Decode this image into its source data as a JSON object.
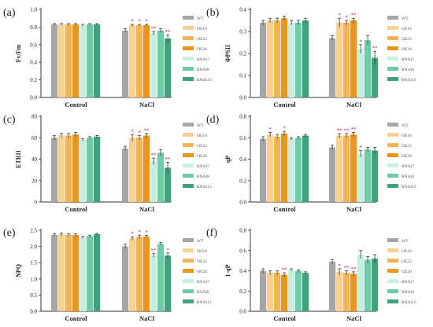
{
  "legend": [
    "WT",
    "OE18",
    "OE22",
    "OE28",
    "RNAi7",
    "RNAi8",
    "RNAi13"
  ],
  "colors": {
    "WT": "#a6a6a6",
    "OE18": "#f9d08f",
    "OE22": "#f6b354",
    "OE28": "#e9951a",
    "RNAi7": "#c4f0e3",
    "RNAi8": "#6dcca8",
    "RNAi13": "#3ea27a",
    "significance": "#c01060"
  },
  "chart_data": [
    {
      "type": "bar",
      "panel": "(a)",
      "ylabel": "Fv/Fm",
      "categories": [
        "Control",
        "NaCl"
      ],
      "ylim": [
        0,
        1.0
      ],
      "yticks": [
        0.0,
        0.2,
        0.4,
        0.6,
        0.8,
        1.0
      ],
      "tick_labels": [
        "0.0",
        "0.2",
        "0.4",
        "0.6",
        "0.8",
        "1.0"
      ],
      "series": [
        {
          "name": "WT",
          "values": [
            0.83,
            0.76
          ],
          "errors": [
            0.01,
            0.02
          ],
          "marks": [
            "",
            ""
          ]
        },
        {
          "name": "OE18",
          "values": [
            0.83,
            0.82
          ],
          "errors": [
            0.01,
            0.01
          ],
          "marks": [
            "",
            "*"
          ]
        },
        {
          "name": "OE22",
          "values": [
            0.83,
            0.82
          ],
          "errors": [
            0.01,
            0.01
          ],
          "marks": [
            "",
            "*"
          ]
        },
        {
          "name": "OE28",
          "values": [
            0.83,
            0.82
          ],
          "errors": [
            0.01,
            0.01
          ],
          "marks": [
            "",
            "*"
          ]
        },
        {
          "name": "RNAi7",
          "values": [
            0.82,
            0.73
          ],
          "errors": [
            0.01,
            0.02
          ],
          "marks": [
            "",
            "**"
          ]
        },
        {
          "name": "RNAi8",
          "values": [
            0.83,
            0.76
          ],
          "errors": [
            0.01,
            0.02
          ],
          "marks": [
            "",
            ""
          ]
        },
        {
          "name": "RNAi13",
          "values": [
            0.83,
            0.67
          ],
          "errors": [
            0.01,
            0.04
          ],
          "marks": [
            "",
            "**"
          ]
        }
      ]
    },
    {
      "type": "bar",
      "panel": "(b)",
      "ylabel": "ΦPSII",
      "categories": [
        "Control",
        "NaCl"
      ],
      "ylim": [
        0,
        0.4
      ],
      "yticks": [
        0.0,
        0.1,
        0.2,
        0.3,
        0.4
      ],
      "tick_labels": [
        "0.0",
        "0.1",
        "0.2",
        "0.3",
        "0.4"
      ],
      "series": [
        {
          "name": "WT",
          "values": [
            0.34,
            0.27
          ],
          "errors": [
            0.01,
            0.01
          ],
          "marks": [
            "",
            ""
          ]
        },
        {
          "name": "OE18",
          "values": [
            0.35,
            0.34
          ],
          "errors": [
            0.01,
            0.02
          ],
          "marks": [
            "",
            "*"
          ]
        },
        {
          "name": "OE22",
          "values": [
            0.35,
            0.34
          ],
          "errors": [
            0.01,
            0.01
          ],
          "marks": [
            "",
            "*"
          ]
        },
        {
          "name": "OE28",
          "values": [
            0.36,
            0.35
          ],
          "errors": [
            0.01,
            0.01
          ],
          "marks": [
            "",
            "**"
          ]
        },
        {
          "name": "RNAi7",
          "values": [
            0.34,
            0.22
          ],
          "errors": [
            0.01,
            0.02
          ],
          "marks": [
            "",
            "*"
          ]
        },
        {
          "name": "RNAi8",
          "values": [
            0.34,
            0.26
          ],
          "errors": [
            0.01,
            0.02
          ],
          "marks": [
            "",
            ""
          ]
        },
        {
          "name": "RNAi13",
          "values": [
            0.35,
            0.18
          ],
          "errors": [
            0.01,
            0.03
          ],
          "marks": [
            "",
            "**"
          ]
        }
      ]
    },
    {
      "type": "bar",
      "panel": "(c)",
      "ylabel": "ETRII",
      "categories": [
        "Control",
        "NaCl"
      ],
      "ylim": [
        0,
        80
      ],
      "yticks": [
        0,
        20,
        40,
        60,
        80
      ],
      "tick_labels": [
        "0",
        "20",
        "40",
        "60",
        "80"
      ],
      "series": [
        {
          "name": "WT",
          "values": [
            60,
            50
          ],
          "errors": [
            2,
            2
          ],
          "marks": [
            "",
            ""
          ]
        },
        {
          "name": "OE18",
          "values": [
            62,
            60
          ],
          "errors": [
            2,
            3
          ],
          "marks": [
            "",
            "*"
          ]
        },
        {
          "name": "OE22",
          "values": [
            62,
            60
          ],
          "errors": [
            2,
            2
          ],
          "marks": [
            "",
            "*"
          ]
        },
        {
          "name": "OE28",
          "values": [
            63,
            62
          ],
          "errors": [
            2,
            2
          ],
          "marks": [
            "",
            "**"
          ]
        },
        {
          "name": "RNAi7",
          "values": [
            58,
            38
          ],
          "errors": [
            1,
            3
          ],
          "marks": [
            "",
            "**"
          ]
        },
        {
          "name": "RNAi8",
          "values": [
            60,
            46
          ],
          "errors": [
            1,
            3
          ],
          "marks": [
            "",
            ""
          ]
        },
        {
          "name": "RNAi13",
          "values": [
            61,
            32
          ],
          "errors": [
            1,
            5
          ],
          "marks": [
            "",
            "**"
          ]
        }
      ]
    },
    {
      "type": "bar",
      "panel": "(d)",
      "ylabel": "qP",
      "categories": [
        "Control",
        "NaCl"
      ],
      "ylim": [
        0,
        0.8
      ],
      "yticks": [
        0.0,
        0.2,
        0.4,
        0.6,
        0.8
      ],
      "tick_labels": [
        "0.0",
        "0.2",
        "0.4",
        "0.6",
        "0.8"
      ],
      "series": [
        {
          "name": "WT",
          "values": [
            0.59,
            0.51
          ],
          "errors": [
            0.02,
            0.02
          ],
          "marks": [
            "",
            ""
          ]
        },
        {
          "name": "OE18",
          "values": [
            0.63,
            0.62
          ],
          "errors": [
            0.02,
            0.02
          ],
          "marks": [
            "*",
            "**"
          ]
        },
        {
          "name": "OE22",
          "values": [
            0.61,
            0.62
          ],
          "errors": [
            0.02,
            0.02
          ],
          "marks": [
            "",
            "**"
          ]
        },
        {
          "name": "OE28",
          "values": [
            0.64,
            0.63
          ],
          "errors": [
            0.02,
            0.02
          ],
          "marks": [
            "*",
            "**"
          ]
        },
        {
          "name": "RNAi7",
          "values": [
            0.59,
            0.45
          ],
          "errors": [
            0.01,
            0.03
          ],
          "marks": [
            "",
            "*"
          ]
        },
        {
          "name": "RNAi8",
          "values": [
            0.6,
            0.49
          ],
          "errors": [
            0.01,
            0.02
          ],
          "marks": [
            "",
            ""
          ]
        },
        {
          "name": "RNAi13",
          "values": [
            0.62,
            0.48
          ],
          "errors": [
            0.01,
            0.03
          ],
          "marks": [
            "",
            ""
          ]
        }
      ]
    },
    {
      "type": "bar",
      "panel": "(e)",
      "ylabel": "NPQ",
      "categories": [
        "Control",
        "NaCl"
      ],
      "ylim": [
        0,
        2.5
      ],
      "yticks": [
        0.0,
        0.5,
        1.0,
        1.5,
        2.0,
        2.5
      ],
      "tick_labels": [
        "0.0",
        "0.5",
        "1.0",
        "1.5",
        "2.0",
        "2.5"
      ],
      "series": [
        {
          "name": "WT",
          "values": [
            2.36,
            2.0
          ],
          "errors": [
            0.04,
            0.07
          ],
          "marks": [
            "",
            ""
          ]
        },
        {
          "name": "OE18",
          "values": [
            2.38,
            2.25
          ],
          "errors": [
            0.04,
            0.05
          ],
          "marks": [
            "",
            "*"
          ]
        },
        {
          "name": "OE22",
          "values": [
            2.36,
            2.3
          ],
          "errors": [
            0.04,
            0.05
          ],
          "marks": [
            "",
            "*"
          ]
        },
        {
          "name": "OE28",
          "values": [
            2.35,
            2.3
          ],
          "errors": [
            0.04,
            0.04
          ],
          "marks": [
            "",
            "*"
          ]
        },
        {
          "name": "RNAi7",
          "values": [
            2.28,
            1.73
          ],
          "errors": [
            0.03,
            0.06
          ],
          "marks": [
            "",
            "**"
          ]
        },
        {
          "name": "RNAi8",
          "values": [
            2.32,
            2.08
          ],
          "errors": [
            0.03,
            0.05
          ],
          "marks": [
            "",
            ""
          ]
        },
        {
          "name": "RNAi13",
          "values": [
            2.38,
            1.72
          ],
          "errors": [
            0.03,
            0.08
          ],
          "marks": [
            "",
            "*"
          ]
        }
      ]
    },
    {
      "type": "bar",
      "panel": "(f)",
      "ylabel": "1-qP",
      "categories": [
        "Control",
        "NaCl"
      ],
      "ylim": [
        0,
        0.8
      ],
      "yticks": [
        0.0,
        0.2,
        0.4,
        0.6,
        0.8
      ],
      "tick_labels": [
        "0.0",
        "0.2",
        "0.4",
        "0.6",
        "0.8"
      ],
      "series": [
        {
          "name": "WT",
          "values": [
            0.4,
            0.49
          ],
          "errors": [
            0.02,
            0.02
          ],
          "marks": [
            "",
            ""
          ]
        },
        {
          "name": "OE18",
          "values": [
            0.38,
            0.39
          ],
          "errors": [
            0.02,
            0.03
          ],
          "marks": [
            "",
            "*"
          ]
        },
        {
          "name": "OE22",
          "values": [
            0.38,
            0.38
          ],
          "errors": [
            0.02,
            0.02
          ],
          "marks": [
            "",
            "**"
          ]
        },
        {
          "name": "OE28",
          "values": [
            0.36,
            0.37
          ],
          "errors": [
            0.02,
            0.02
          ],
          "marks": [
            "**",
            "**"
          ]
        },
        {
          "name": "RNAi7",
          "values": [
            0.41,
            0.56
          ],
          "errors": [
            0.01,
            0.04
          ],
          "marks": [
            "",
            ""
          ]
        },
        {
          "name": "RNAi8",
          "values": [
            0.4,
            0.51
          ],
          "errors": [
            0.01,
            0.03
          ],
          "marks": [
            "",
            ""
          ]
        },
        {
          "name": "RNAi13",
          "values": [
            0.38,
            0.52
          ],
          "errors": [
            0.01,
            0.04
          ],
          "marks": [
            "",
            ""
          ]
        }
      ]
    }
  ]
}
